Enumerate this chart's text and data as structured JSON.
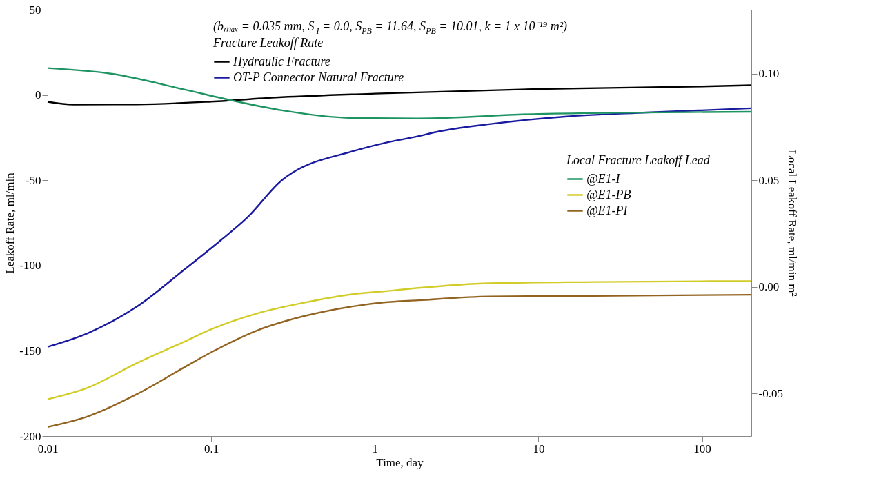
{
  "chart_data": {
    "type": "line",
    "xlabel": "Time, day",
    "ylabel": "Leakoff Rate, ml/min",
    "y2label": "Local Leakoff Rate, ml/min m²",
    "legend_title": "Fracture Leakoff Rate",
    "annotations": [
      "(bₘₐₓ = 0.035 mm, S$_{I}$ = 0.0, S$_{PB}$ = 11.64, S$_{PB}$ = 10.01, k = 1 x 10⁻¹⁹ m²)",
      "Local Fracture Leakoff Lead"
    ],
    "log": "x",
    "grid": false,
    "legend": "top",
    "marker": "none",
    "line_style": "solid",
    "xlim": [
      0.01,
      200
    ],
    "xticks": [
      0.01,
      0.1,
      1,
      10,
      100
    ],
    "ylim": [
      -200,
      50
    ],
    "yticks": [
      -200,
      -150,
      -100,
      -50,
      0,
      50
    ],
    "y2lim": [
      -0.07,
      0.13
    ],
    "y2ticks": [
      {
        "value": -0.05,
        "label": "-0.05"
      },
      {
        "value": 0,
        "label": "0.00"
      },
      {
        "value": 0.05,
        "label": "0.05"
      },
      {
        "value": 0.1,
        "label": "0.10"
      }
    ],
    "series": [
      {
        "name": "Hydraulic Fracture",
        "color": "#000000",
        "x": [
          0.01,
          0.0144,
          0.035,
          0.1,
          0.27,
          1,
          10,
          100,
          200
        ],
        "values": [
          -4.0,
          -5.6,
          -5.5,
          -3.9,
          -1.3,
          0.8,
          3.5,
          5.0,
          5.7
        ]
      },
      {
        "name": "OT-P Connector Natural Fracture",
        "color": "#1a1aa0",
        "x": [
          0.01,
          0.0177,
          0.035,
          0.069,
          0.115,
          0.167,
          0.27,
          0.74,
          1.13,
          1.84,
          2.38,
          5,
          15,
          46,
          200
        ],
        "values": [
          -147.7,
          -139.6,
          -124.2,
          -102.1,
          -85.0,
          -71.6,
          -50.0,
          -32.9,
          -28.3,
          -24.2,
          -21.7,
          -17.1,
          -12.6,
          -10.3,
          -7.8
        ]
      },
      {
        "name": "@E1-I",
        "color": "#1e9462",
        "axis": "y2",
        "x": [
          0.01,
          0.0248,
          0.069,
          0.14,
          0.27,
          0.74,
          1.84,
          10,
          200
        ],
        "values": [
          0.1026,
          0.0999,
          0.0925,
          0.0871,
          0.0828,
          0.0792,
          0.079,
          0.0811,
          0.0821
        ]
      },
      {
        "name": "@E1-PB",
        "color": "#d2cc28",
        "axis": "y2",
        "x": [
          0.01,
          0.0177,
          0.035,
          0.069,
          0.1,
          0.19,
          0.37,
          0.74,
          1.13,
          1.84,
          5,
          22,
          200
        ],
        "values": [
          -0.0527,
          -0.0472,
          -0.0358,
          -0.0256,
          -0.0199,
          -0.0125,
          -0.0074,
          -0.0034,
          -0.0021,
          -0.0005,
          0.0017,
          0.0023,
          0.0027
        ]
      },
      {
        "name": "@E1-PI",
        "color": "#936421",
        "axis": "y2",
        "x": [
          0.01,
          0.0177,
          0.035,
          0.069,
          0.1,
          0.19,
          0.37,
          0.74,
          1.13,
          1.84,
          5,
          22,
          200
        ],
        "values": [
          -0.0657,
          -0.0607,
          -0.0504,
          -0.0376,
          -0.0307,
          -0.0205,
          -0.0137,
          -0.0091,
          -0.0073,
          -0.0063,
          -0.0045,
          -0.0042,
          -0.0037
        ]
      }
    ]
  }
}
